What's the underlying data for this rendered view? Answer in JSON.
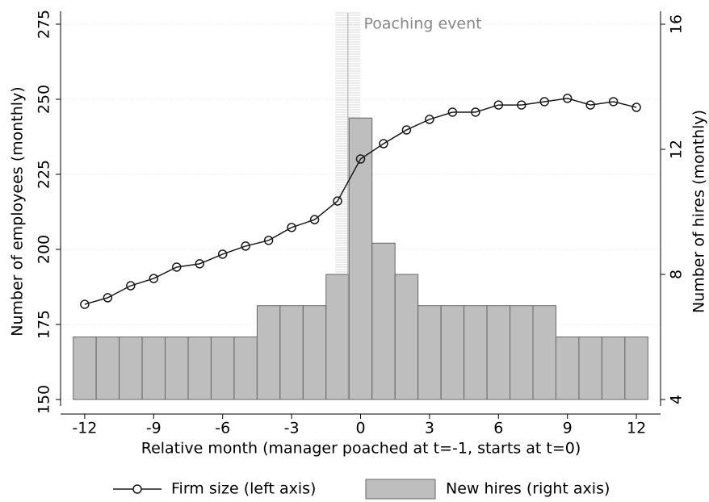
{
  "chart_data": {
    "type": "bar_line",
    "x_label": "Relative month (manager poached at t=-1, starts at t=0)",
    "y_label": "Number of employees (monthly)",
    "y2_label": "Number of hires (monthly)",
    "annotation": "Poaching event",
    "event_range": [
      -1.1,
      0
    ],
    "x": [
      -12,
      -11,
      -10,
      -9,
      -8,
      -7,
      -6,
      -5,
      -4,
      -3,
      -2,
      -1,
      0,
      1,
      2,
      3,
      4,
      5,
      6,
      7,
      8,
      9,
      10,
      11,
      12
    ],
    "series": [
      {
        "name": "Firm size (left axis)",
        "color": "#1a1a1a",
        "kind": "line",
        "values": [
          181.7,
          183.9,
          187.9,
          190.3,
          194.1,
          195.2,
          198.4,
          201.1,
          203.0,
          207.3,
          209.9,
          216.1,
          230.1,
          235.2,
          239.8,
          243.3,
          245.7,
          245.7,
          248.1,
          248.1,
          249.2,
          250.3,
          248.1,
          249.2,
          247.3
        ]
      },
      {
        "name": "New hires (right axis)",
        "color": "#bebebe",
        "kind": "bar",
        "axis": "y2",
        "values": [
          6,
          6,
          6,
          6,
          6,
          6,
          6,
          6,
          7,
          7,
          7,
          8,
          13,
          9,
          8,
          7,
          7,
          7,
          7,
          7,
          7,
          6,
          6,
          6,
          6
        ]
      }
    ],
    "xlim": [
      -13.05,
      13.05
    ],
    "xticks": [
      -12,
      -9,
      -6,
      -3,
      0,
      3,
      6,
      9,
      12
    ],
    "ylim": [
      150,
      275
    ],
    "yticks": [
      150,
      175,
      200,
      225,
      250,
      275
    ],
    "y2lim": [
      4,
      16
    ],
    "y2ticks": [
      4,
      8,
      12,
      16
    ],
    "grid": true
  }
}
